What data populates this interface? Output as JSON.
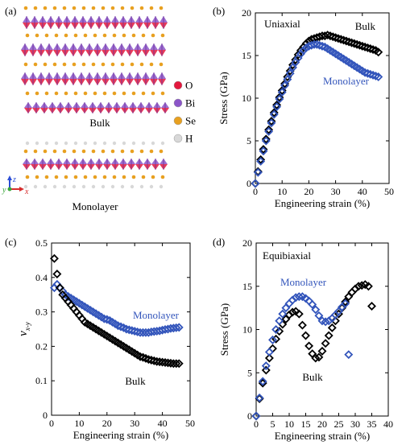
{
  "structure_panel": {
    "label": "(a)",
    "bulk_label": "Bulk",
    "monolayer_label": "Monolayer",
    "legend": [
      {
        "name": "O",
        "color": "#e3183d"
      },
      {
        "name": "Bi",
        "color": "#8b55c8"
      },
      {
        "name": "Se",
        "color": "#e8a020"
      },
      {
        "name": "H",
        "color": "#d8d8d8"
      }
    ],
    "axes_icon": {
      "z": "z",
      "y": "y",
      "x": "x"
    }
  },
  "colors": {
    "bulk": "#000000",
    "monolayer": "#3355bb"
  },
  "chart_data": [
    {
      "id": "b",
      "panel_label": "(b)",
      "type": "scatter",
      "marker": "diamond",
      "annotation": "Uniaxial",
      "xlabel": "Engineering strain (%)",
      "ylabel": "Stress (GPa)",
      "xlim": [
        0,
        50
      ],
      "ylim": [
        0,
        20
      ],
      "xticks": [
        0,
        10,
        20,
        30,
        40,
        50
      ],
      "yticks": [
        0,
        5,
        10,
        15,
        20
      ],
      "series": [
        {
          "name": "Bulk",
          "color": "#000000",
          "x": [
            0,
            1,
            2,
            3,
            4,
            5,
            6,
            7,
            8,
            9,
            10,
            11,
            12,
            13,
            14,
            15,
            16,
            17,
            18,
            19,
            20,
            21,
            22,
            23,
            24,
            25,
            26,
            27,
            28,
            29,
            30,
            31,
            32,
            33,
            34,
            35,
            36,
            37,
            38,
            39,
            40,
            41,
            42,
            43,
            44,
            45,
            46
          ],
          "y": [
            0,
            1.4,
            2.8,
            4.0,
            5.2,
            6.3,
            7.3,
            8.3,
            9.2,
            10.1,
            10.9,
            11.7,
            12.5,
            13.2,
            13.9,
            14.5,
            15.1,
            15.6,
            16.0,
            16.4,
            16.7,
            16.9,
            17.0,
            17.1,
            17.2,
            17.3,
            17.3,
            17.4,
            17.3,
            17.2,
            17.1,
            17.0,
            16.9,
            16.8,
            16.7,
            16.6,
            16.5,
            16.4,
            16.3,
            16.2,
            16.1,
            16.0,
            15.9,
            15.8,
            15.7,
            15.6,
            15.4
          ]
        },
        {
          "name": "Monolayer",
          "color": "#3355bb",
          "x": [
            0,
            1,
            2,
            3,
            4,
            5,
            6,
            7,
            8,
            9,
            10,
            11,
            12,
            13,
            14,
            15,
            16,
            17,
            18,
            19,
            20,
            21,
            22,
            23,
            24,
            25,
            26,
            27,
            28,
            29,
            30,
            31,
            32,
            33,
            34,
            35,
            36,
            37,
            38,
            39,
            40,
            41,
            42,
            43,
            44,
            45,
            46
          ],
          "y": [
            0,
            1.3,
            2.6,
            3.8,
            5.0,
            6.1,
            7.1,
            8.1,
            9.0,
            9.9,
            10.7,
            11.5,
            12.2,
            12.9,
            13.6,
            14.2,
            14.7,
            15.2,
            15.6,
            15.9,
            16.1,
            16.2,
            16.3,
            16.3,
            16.2,
            16.1,
            16.0,
            15.8,
            15.6,
            15.4,
            15.2,
            15.0,
            14.8,
            14.6,
            14.4,
            14.2,
            14.0,
            13.8,
            13.6,
            13.4,
            13.2,
            13.0,
            12.9,
            12.8,
            12.7,
            12.6,
            12.5
          ]
        }
      ]
    },
    {
      "id": "c",
      "panel_label": "(c)",
      "type": "scatter",
      "marker": "diamond",
      "xlabel": "Engineering strain (%)",
      "ylabel_main": "v",
      "ylabel_sub": "x-y",
      "xlim": [
        0,
        50
      ],
      "ylim": [
        0,
        0.5
      ],
      "xticks": [
        0,
        10,
        20,
        30,
        40,
        50
      ],
      "yticks": [
        0,
        0.1,
        0.2,
        0.3,
        0.4,
        0.5
      ],
      "series": [
        {
          "name": "Monolayer",
          "color": "#3355bb",
          "x": [
            1,
            2,
            3,
            4,
            5,
            6,
            7,
            8,
            9,
            10,
            11,
            12,
            13,
            14,
            15,
            16,
            17,
            18,
            19,
            20,
            21,
            22,
            23,
            24,
            25,
            26,
            27,
            28,
            29,
            30,
            31,
            32,
            33,
            34,
            35,
            36,
            37,
            38,
            39,
            40,
            41,
            42,
            43,
            44,
            45,
            46
          ],
          "y": [
            0.37,
            0.38,
            0.37,
            0.36,
            0.35,
            0.345,
            0.34,
            0.335,
            0.33,
            0.325,
            0.32,
            0.315,
            0.31,
            0.305,
            0.3,
            0.295,
            0.29,
            0.285,
            0.28,
            0.278,
            0.275,
            0.27,
            0.265,
            0.26,
            0.257,
            0.254,
            0.25,
            0.248,
            0.246,
            0.244,
            0.242,
            0.24,
            0.24,
            0.24,
            0.24,
            0.242,
            0.243,
            0.244,
            0.245,
            0.247,
            0.249,
            0.25,
            0.252,
            0.253,
            0.254,
            0.255
          ]
        },
        {
          "name": "Bulk",
          "color": "#000000",
          "x": [
            1,
            2,
            3,
            4,
            5,
            6,
            7,
            8,
            9,
            10,
            11,
            12,
            13,
            14,
            15,
            16,
            17,
            18,
            19,
            20,
            21,
            22,
            23,
            24,
            25,
            26,
            27,
            28,
            29,
            30,
            31,
            32,
            33,
            34,
            35,
            36,
            37,
            38,
            39,
            40,
            41,
            42,
            43,
            44,
            45,
            46
          ],
          "y": [
            0.455,
            0.41,
            0.37,
            0.35,
            0.34,
            0.33,
            0.32,
            0.31,
            0.3,
            0.29,
            0.28,
            0.27,
            0.265,
            0.26,
            0.255,
            0.25,
            0.245,
            0.24,
            0.235,
            0.23,
            0.225,
            0.22,
            0.215,
            0.21,
            0.205,
            0.2,
            0.195,
            0.19,
            0.185,
            0.18,
            0.175,
            0.17,
            0.168,
            0.165,
            0.162,
            0.16,
            0.158,
            0.156,
            0.155,
            0.154,
            0.153,
            0.152,
            0.151,
            0.15,
            0.15,
            0.15
          ]
        }
      ]
    },
    {
      "id": "d",
      "panel_label": "(d)",
      "type": "scatter",
      "marker": "diamond",
      "annotation": "Equibiaxial",
      "xlabel": "Engineering strain (%)",
      "ylabel": "Stress (GPa)",
      "xlim": [
        0,
        40
      ],
      "ylim": [
        0,
        20
      ],
      "xticks": [
        0,
        5,
        10,
        15,
        20,
        25,
        30,
        35,
        40
      ],
      "yticks": [
        0,
        5,
        10,
        15,
        20
      ],
      "series": [
        {
          "name": "Bulk",
          "color": "#000000",
          "x": [
            0,
            1,
            2,
            3,
            4,
            5,
            6,
            7,
            8,
            9,
            10,
            11,
            12,
            13,
            14,
            15,
            16,
            17,
            18,
            19,
            20,
            21,
            22,
            23,
            24,
            25,
            26,
            27,
            28,
            29,
            30,
            31,
            32,
            33,
            34,
            35
          ],
          "y": [
            0,
            2.0,
            3.8,
            5.3,
            6.7,
            7.8,
            8.9,
            9.8,
            10.6,
            11.2,
            11.7,
            12.0,
            12.1,
            11.8,
            10.5,
            9.3,
            8.1,
            7.2,
            6.7,
            6.8,
            7.5,
            8.4,
            9.3,
            10.2,
            11.0,
            11.8,
            12.5,
            13.2,
            13.8,
            14.3,
            14.7,
            15.0,
            15.1,
            15.2,
            15.0,
            12.7
          ]
        },
        {
          "name": "Monolayer",
          "color": "#3355bb",
          "x": [
            0,
            1,
            2,
            3,
            4,
            5,
            6,
            7,
            8,
            9,
            10,
            11,
            12,
            13,
            14,
            15,
            16,
            17,
            18,
            19,
            20,
            21,
            22,
            23,
            24,
            25,
            26,
            27,
            28
          ],
          "y": [
            0,
            2.1,
            4.0,
            5.8,
            7.4,
            8.8,
            10.0,
            11.0,
            11.8,
            12.5,
            13.0,
            13.4,
            13.7,
            13.8,
            13.8,
            13.6,
            13.3,
            12.9,
            12.3,
            11.6,
            11.0,
            10.9,
            11.0,
            11.3,
            11.7,
            12.1,
            12.6,
            13.0,
            7.1
          ]
        }
      ]
    }
  ]
}
